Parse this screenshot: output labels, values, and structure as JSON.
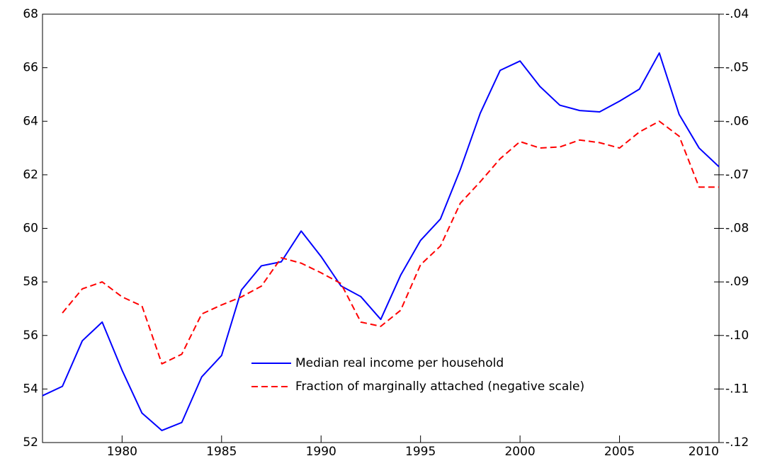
{
  "chart_data": {
    "type": "line",
    "x": [
      1976,
      1977,
      1978,
      1979,
      1980,
      1981,
      1982,
      1983,
      1984,
      1985,
      1986,
      1987,
      1988,
      1989,
      1990,
      1991,
      1992,
      1993,
      1994,
      1995,
      1996,
      1997,
      1998,
      1999,
      2000,
      2001,
      2002,
      2003,
      2004,
      2005,
      2006,
      2007,
      2008,
      2009,
      2010
    ],
    "series": [
      {
        "name": "Median real income per household",
        "color": "#0000ff",
        "dash": "solid",
        "values": [
          53.75,
          54.1,
          55.8,
          56.5,
          54.7,
          53.1,
          52.45,
          52.75,
          54.45,
          55.25,
          57.7,
          58.6,
          58.75,
          59.9,
          58.95,
          57.85,
          57.45,
          56.6,
          58.25,
          59.55,
          60.35,
          62.2,
          64.3,
          65.9,
          66.25,
          65.3,
          64.6,
          64.4,
          64.35,
          64.75,
          65.2,
          66.55,
          64.25,
          63.0,
          62.3
        ]
      },
      {
        "name": "Fraction of marginally attached (negative scale)",
        "color": "#ff0000",
        "dash": "dashed",
        "axis": "y2",
        "values": [
          null,
          -0.0958,
          -0.0913,
          -0.09,
          -0.0928,
          -0.0945,
          -0.1053,
          -0.1035,
          -0.096,
          -0.0943,
          -0.0928,
          -0.0908,
          -0.0855,
          -0.0865,
          -0.0883,
          -0.0903,
          -0.0975,
          -0.0983,
          -0.0953,
          -0.0868,
          -0.0833,
          -0.0753,
          -0.0713,
          -0.067,
          -0.0638,
          -0.065,
          -0.0648,
          -0.0635,
          -0.064,
          -0.065,
          -0.062,
          -0.06,
          -0.0628,
          -0.0723,
          -0.0723
        ]
      }
    ],
    "xlim": [
      1976,
      2010
    ],
    "xticks": [
      1980,
      1985,
      1990,
      1995,
      2000,
      2005,
      2010
    ],
    "ylim": [
      52,
      68
    ],
    "yticks": [
      52,
      54,
      56,
      58,
      60,
      62,
      64,
      66,
      68
    ],
    "y2lim": [
      -0.12,
      -0.04
    ],
    "y2ticks": [
      {
        "value": -0.12,
        "label": "-.12"
      },
      {
        "value": -0.11,
        "label": "-.11"
      },
      {
        "value": -0.1,
        "label": "-.10"
      },
      {
        "value": -0.09,
        "label": "-.09"
      },
      {
        "value": -0.08,
        "label": "-.08"
      },
      {
        "value": -0.07,
        "label": "-.07"
      },
      {
        "value": -0.06,
        "label": "-.06"
      },
      {
        "value": -0.05,
        "label": "-.05"
      },
      {
        "value": -0.04,
        "label": "-.04"
      }
    ],
    "legend": "lower-center"
  }
}
